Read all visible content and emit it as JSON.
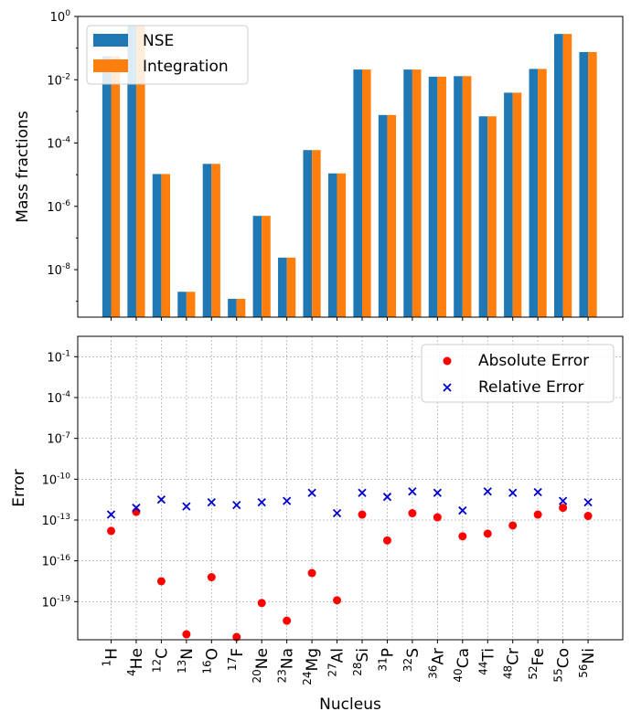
{
  "chart_data": [
    {
      "type": "bar",
      "ylabel": "Mass fractions",
      "yscale": "log",
      "ylim_exp": [
        -9.5,
        0
      ],
      "yticks": [
        {
          "exp": 0,
          "label": "10",
          "sup": "0"
        },
        {
          "exp": -2,
          "label": "10",
          "sup": "-2"
        },
        {
          "exp": -4,
          "label": "10",
          "sup": "-4"
        },
        {
          "exp": -6,
          "label": "10",
          "sup": "-6"
        },
        {
          "exp": -8,
          "label": "10",
          "sup": "-8"
        }
      ],
      "categories": [
        {
          "mass": "1",
          "sym": "H"
        },
        {
          "mass": "4",
          "sym": "He"
        },
        {
          "mass": "12",
          "sym": "C"
        },
        {
          "mass": "13",
          "sym": "N"
        },
        {
          "mass": "16",
          "sym": "O"
        },
        {
          "mass": "17",
          "sym": "F"
        },
        {
          "mass": "20",
          "sym": "Ne"
        },
        {
          "mass": "23",
          "sym": "Na"
        },
        {
          "mass": "24",
          "sym": "Mg"
        },
        {
          "mass": "27",
          "sym": "Al"
        },
        {
          "mass": "28",
          "sym": "Si"
        },
        {
          "mass": "31",
          "sym": "P"
        },
        {
          "mass": "32",
          "sym": "S"
        },
        {
          "mass": "36",
          "sym": "Ar"
        },
        {
          "mass": "40",
          "sym": "Ca"
        },
        {
          "mass": "44",
          "sym": "Ti"
        },
        {
          "mass": "48",
          "sym": "Cr"
        },
        {
          "mass": "52",
          "sym": "Fe"
        },
        {
          "mass": "55",
          "sym": "Co"
        },
        {
          "mass": "56",
          "sym": "Ni"
        }
      ],
      "series": [
        {
          "name": "NSE",
          "color": "#1f77b4",
          "values": [
            0.055,
            0.5,
            1.05e-05,
            2e-09,
            2.2e-05,
            1.2e-09,
            5e-07,
            2.4e-08,
            6e-05,
            1.1e-05,
            0.021,
            0.00077,
            0.021,
            0.0125,
            0.013,
            0.0007,
            0.0039,
            0.022,
            0.28,
            0.075
          ]
        },
        {
          "name": "Integration",
          "color": "#ff7f0e",
          "values": [
            0.055,
            0.5,
            1.05e-05,
            2e-09,
            2.2e-05,
            1.2e-09,
            5e-07,
            2.4e-08,
            6e-05,
            1.1e-05,
            0.021,
            0.00077,
            0.021,
            0.0125,
            0.013,
            0.0007,
            0.0039,
            0.022,
            0.28,
            0.075
          ]
        }
      ],
      "legend": {
        "placement": "top-left",
        "items": [
          "NSE",
          "Integration"
        ]
      }
    },
    {
      "type": "scatter",
      "xlabel": "Nucleus",
      "ylabel": "Error",
      "yscale": "log",
      "ylim_exp": [
        -21.8,
        0.5
      ],
      "grid": true,
      "yticks": [
        {
          "exp": -1,
          "label": "10",
          "sup": "-1"
        },
        {
          "exp": -4,
          "label": "10",
          "sup": "-4"
        },
        {
          "exp": -7,
          "label": "10",
          "sup": "-7"
        },
        {
          "exp": -10,
          "label": "10",
          "sup": "-10"
        },
        {
          "exp": -13,
          "label": "10",
          "sup": "-13"
        },
        {
          "exp": -16,
          "label": "10",
          "sup": "-16"
        },
        {
          "exp": -19,
          "label": "10",
          "sup": "-19"
        }
      ],
      "series": [
        {
          "name": "Absolute Error",
          "marker": "o",
          "color": "#ff0000",
          "log10_values": [
            -13.8,
            -12.4,
            -17.5,
            -21.4,
            -17.2,
            -21.6,
            -19.1,
            -20.4,
            -16.9,
            -18.9,
            -12.6,
            -14.5,
            -12.5,
            -12.8,
            -14.2,
            -14.0,
            -13.4,
            -12.6,
            -12.1,
            -12.7
          ]
        },
        {
          "name": "Relative Error",
          "marker": "x",
          "color": "#0000cc",
          "log10_values": [
            -12.6,
            -12.1,
            -11.5,
            -12.0,
            -11.7,
            -11.9,
            -11.7,
            -11.6,
            -11.0,
            -12.5,
            -11.0,
            -11.3,
            -10.9,
            -11.0,
            -12.3,
            -10.9,
            -11.0,
            -10.95,
            -11.6,
            -11.7
          ]
        }
      ],
      "legend": {
        "placement": "top-right",
        "items": [
          "Absolute Error",
          "Relative Error"
        ]
      }
    }
  ]
}
